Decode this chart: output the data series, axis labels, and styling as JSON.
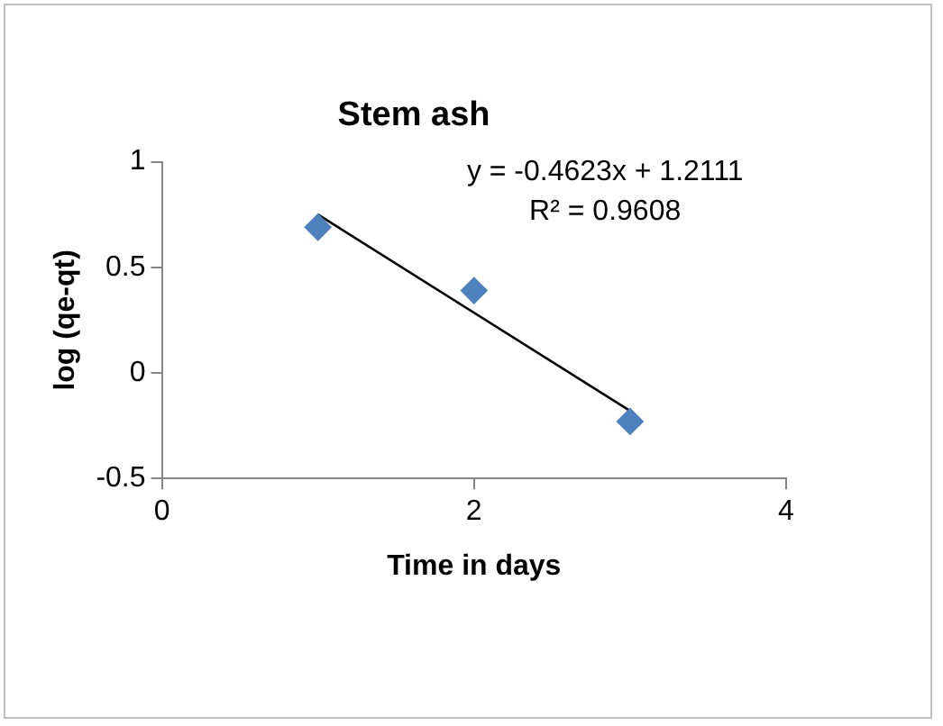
{
  "chart_data": {
    "type": "scatter",
    "title": "Stem ash",
    "xlabel": "Time in days",
    "ylabel": "log (qe-qt)",
    "xlim": [
      0,
      4
    ],
    "xticks": [
      0,
      2,
      4
    ],
    "ylim": [
      -0.5,
      1
    ],
    "yticks": [
      -0.5,
      0,
      0.5,
      1
    ],
    "grid": false,
    "legend": false,
    "marker": "diamond",
    "series": [
      {
        "color": "#4f81bd",
        "x": [
          1,
          2,
          3
        ],
        "values": [
          0.69,
          0.39,
          -0.23
        ]
      },
      {
        "type": "line",
        "color": "#000000",
        "marker": "none",
        "x": [
          1,
          3
        ],
        "values": [
          0.75,
          -0.18
        ]
      }
    ],
    "annotations": [
      "y = -0.4623x + 1.2111",
      "R² = 0.9608"
    ]
  }
}
